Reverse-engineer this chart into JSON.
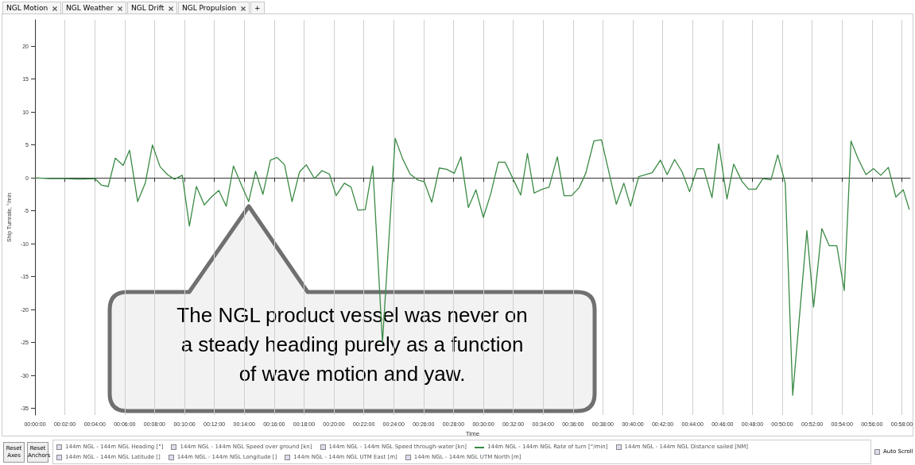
{
  "chart_data": {
    "type": "line",
    "xlabel": "Time",
    "ylabel": "Ship Turnrate, °/min",
    "xlim": [
      0,
      0.976
    ],
    "ylim": [
      -36,
      24
    ],
    "xticks": [
      {
        "value": 0,
        "label": "00:00:00"
      },
      {
        "value": 0.0333,
        "label": "00:02:00"
      },
      {
        "value": 0.0667,
        "label": "00:04:00"
      },
      {
        "value": 0.1,
        "label": "00:06:00"
      },
      {
        "value": 0.1333,
        "label": "00:08:00"
      },
      {
        "value": 0.1667,
        "label": "00:10:00"
      },
      {
        "value": 0.2,
        "label": "00:12:00"
      },
      {
        "value": 0.2333,
        "label": "00:14:00"
      },
      {
        "value": 0.2667,
        "label": "00:16:00"
      },
      {
        "value": 0.3,
        "label": "00:18:00"
      },
      {
        "value": 0.3333,
        "label": "00:20:00"
      },
      {
        "value": 0.3667,
        "label": "00:22:00"
      },
      {
        "value": 0.4,
        "label": "00:24:00"
      },
      {
        "value": 0.4333,
        "label": "00:26:00"
      },
      {
        "value": 0.4667,
        "label": "00:28:00"
      },
      {
        "value": 0.5,
        "label": "00:30:00"
      },
      {
        "value": 0.5333,
        "label": "00:32:00"
      },
      {
        "value": 0.5667,
        "label": "00:34:00"
      },
      {
        "value": 0.6,
        "label": "00:36:00"
      },
      {
        "value": 0.6333,
        "label": "00:38:00"
      },
      {
        "value": 0.6667,
        "label": "00:40:00"
      },
      {
        "value": 0.7,
        "label": "00:42:00"
      },
      {
        "value": 0.7333,
        "label": "00:44:00"
      },
      {
        "value": 0.7667,
        "label": "00:46:00"
      },
      {
        "value": 0.8,
        "label": "00:48:00"
      },
      {
        "value": 0.8333,
        "label": "00:50:00"
      },
      {
        "value": 0.8667,
        "label": "00:52:00"
      },
      {
        "value": 0.9,
        "label": "00:54:00"
      },
      {
        "value": 0.9333,
        "label": "00:56:00"
      },
      {
        "value": 0.9667,
        "label": "00:58:00"
      }
    ],
    "yticks": [
      -35,
      -30,
      -25,
      -20,
      -15,
      -10,
      -5,
      0,
      5,
      10,
      15,
      20
    ],
    "grid": "x",
    "legend": "bottom",
    "marker": "none",
    "line_style": "solid",
    "series": [
      {
        "name": "144m NGL - 144m NGL Rate of turn [°/min]",
        "color": "#3a8a44",
        "x": [
          0,
          0.0167,
          0.0333,
          0.05,
          0.0667,
          0.0742,
          0.0817,
          0.0895,
          0.0983,
          0.1055,
          0.1145,
          0.123,
          0.131,
          0.1395,
          0.1477,
          0.1555,
          0.1642,
          0.1722,
          0.18,
          0.1888,
          0.1967,
          0.205,
          0.2133,
          0.2213,
          0.23,
          0.2383,
          0.246,
          0.2542,
          0.2625,
          0.27,
          0.2783,
          0.2867,
          0.295,
          0.3025,
          0.3117,
          0.32,
          0.3283,
          0.3358,
          0.345,
          0.3525,
          0.36,
          0.3683,
          0.3767,
          0.3875,
          0.4017,
          0.41,
          0.4183,
          0.4267,
          0.4342,
          0.4425,
          0.4508,
          0.4592,
          0.4675,
          0.475,
          0.4833,
          0.4917,
          0.5,
          0.5083,
          0.5167,
          0.5242,
          0.5333,
          0.5417,
          0.5492,
          0.5567,
          0.5658,
          0.5733,
          0.5825,
          0.59,
          0.5983,
          0.6067,
          0.6142,
          0.6233,
          0.6317,
          0.6483,
          0.6567,
          0.6642,
          0.6733,
          0.6808,
          0.6883,
          0.6975,
          0.705,
          0.7133,
          0.7217,
          0.73,
          0.7383,
          0.7458,
          0.755,
          0.7625,
          0.7717,
          0.7792,
          0.7883,
          0.7958,
          0.8042,
          0.8117,
          0.8208,
          0.8283,
          0.8367,
          0.845,
          0.8608,
          0.8683,
          0.8775,
          0.8858,
          0.8942,
          0.9025,
          0.91,
          0.9183,
          0.9267,
          0.935,
          0.9433,
          0.9517,
          0.96,
          0.9683,
          0.975
        ],
        "values": [
          0,
          -0.1,
          -0.1,
          -0.2,
          -0.1,
          -1.1,
          -1.3,
          3.0,
          1.9,
          4.2,
          -3.6,
          -0.8,
          5.0,
          1.7,
          0.5,
          -0.2,
          0.4,
          -7.3,
          -1.3,
          -4.1,
          -2.9,
          -1.9,
          -4.3,
          1.8,
          -1.0,
          -3.6,
          1.0,
          -2.5,
          2.7,
          3.1,
          2.0,
          -3.6,
          0.9,
          2.0,
          -0.1,
          1.1,
          0.6,
          -2.7,
          -0.8,
          -1.4,
          -4.9,
          -4.8,
          1.8,
          -25,
          6.0,
          2.9,
          0.6,
          -0.3,
          -0.6,
          -3.7,
          1.5,
          1.3,
          0.7,
          3.2,
          -4.5,
          -1.8,
          -6.0,
          -2.4,
          2.4,
          2.4,
          -0.2,
          -2.6,
          3.7,
          -2.3,
          -1.7,
          -1.4,
          3.2,
          -2.7,
          -2.7,
          -1.5,
          0.7,
          5.6,
          5.8,
          -4.0,
          -0.8,
          -4.3,
          0.2,
          0.5,
          0.8,
          2.7,
          0.5,
          2.8,
          0.9,
          -2.1,
          1.4,
          1.4,
          -3.0,
          5.2,
          -3.2,
          2.1,
          -0.5,
          -1.7,
          -1.7,
          -0.1,
          -0.3,
          3.5,
          -0.8,
          -33,
          -8.0,
          -19.6,
          -7.7,
          -10.3,
          -10.3,
          -17.1,
          5.6,
          2.8,
          0.5,
          1.4,
          0.4,
          1.6,
          -2.9,
          -1.8,
          -4.8
        ]
      }
    ],
    "annotations": [
      "The NGL product vessel was never on a steady heading purely as a function of wave motion and yaw.",
      "NGL Motion",
      "NGL Weather",
      "NGL Drift",
      "NGL Propulsion",
      "+",
      "Reset Axes",
      "Reset Anchors",
      "Auto Scroll",
      "144m NGL - 144m NGL Heading [°]",
      "144m NGL - 144m NGL Speed over ground [kn]",
      "144m NGL - 144m NGL Speed through-water [kn]",
      "144m NGL - 144m NGL Distance sailed [NM]",
      "144m NGL - 144m NGL Latitude []",
      "144m NGL - 144m NGL Longitude []",
      "144m NGL - 144m NGL UTM East [m]",
      "144m NGL - 144m NGL UTM North [m]"
    ]
  }
}
